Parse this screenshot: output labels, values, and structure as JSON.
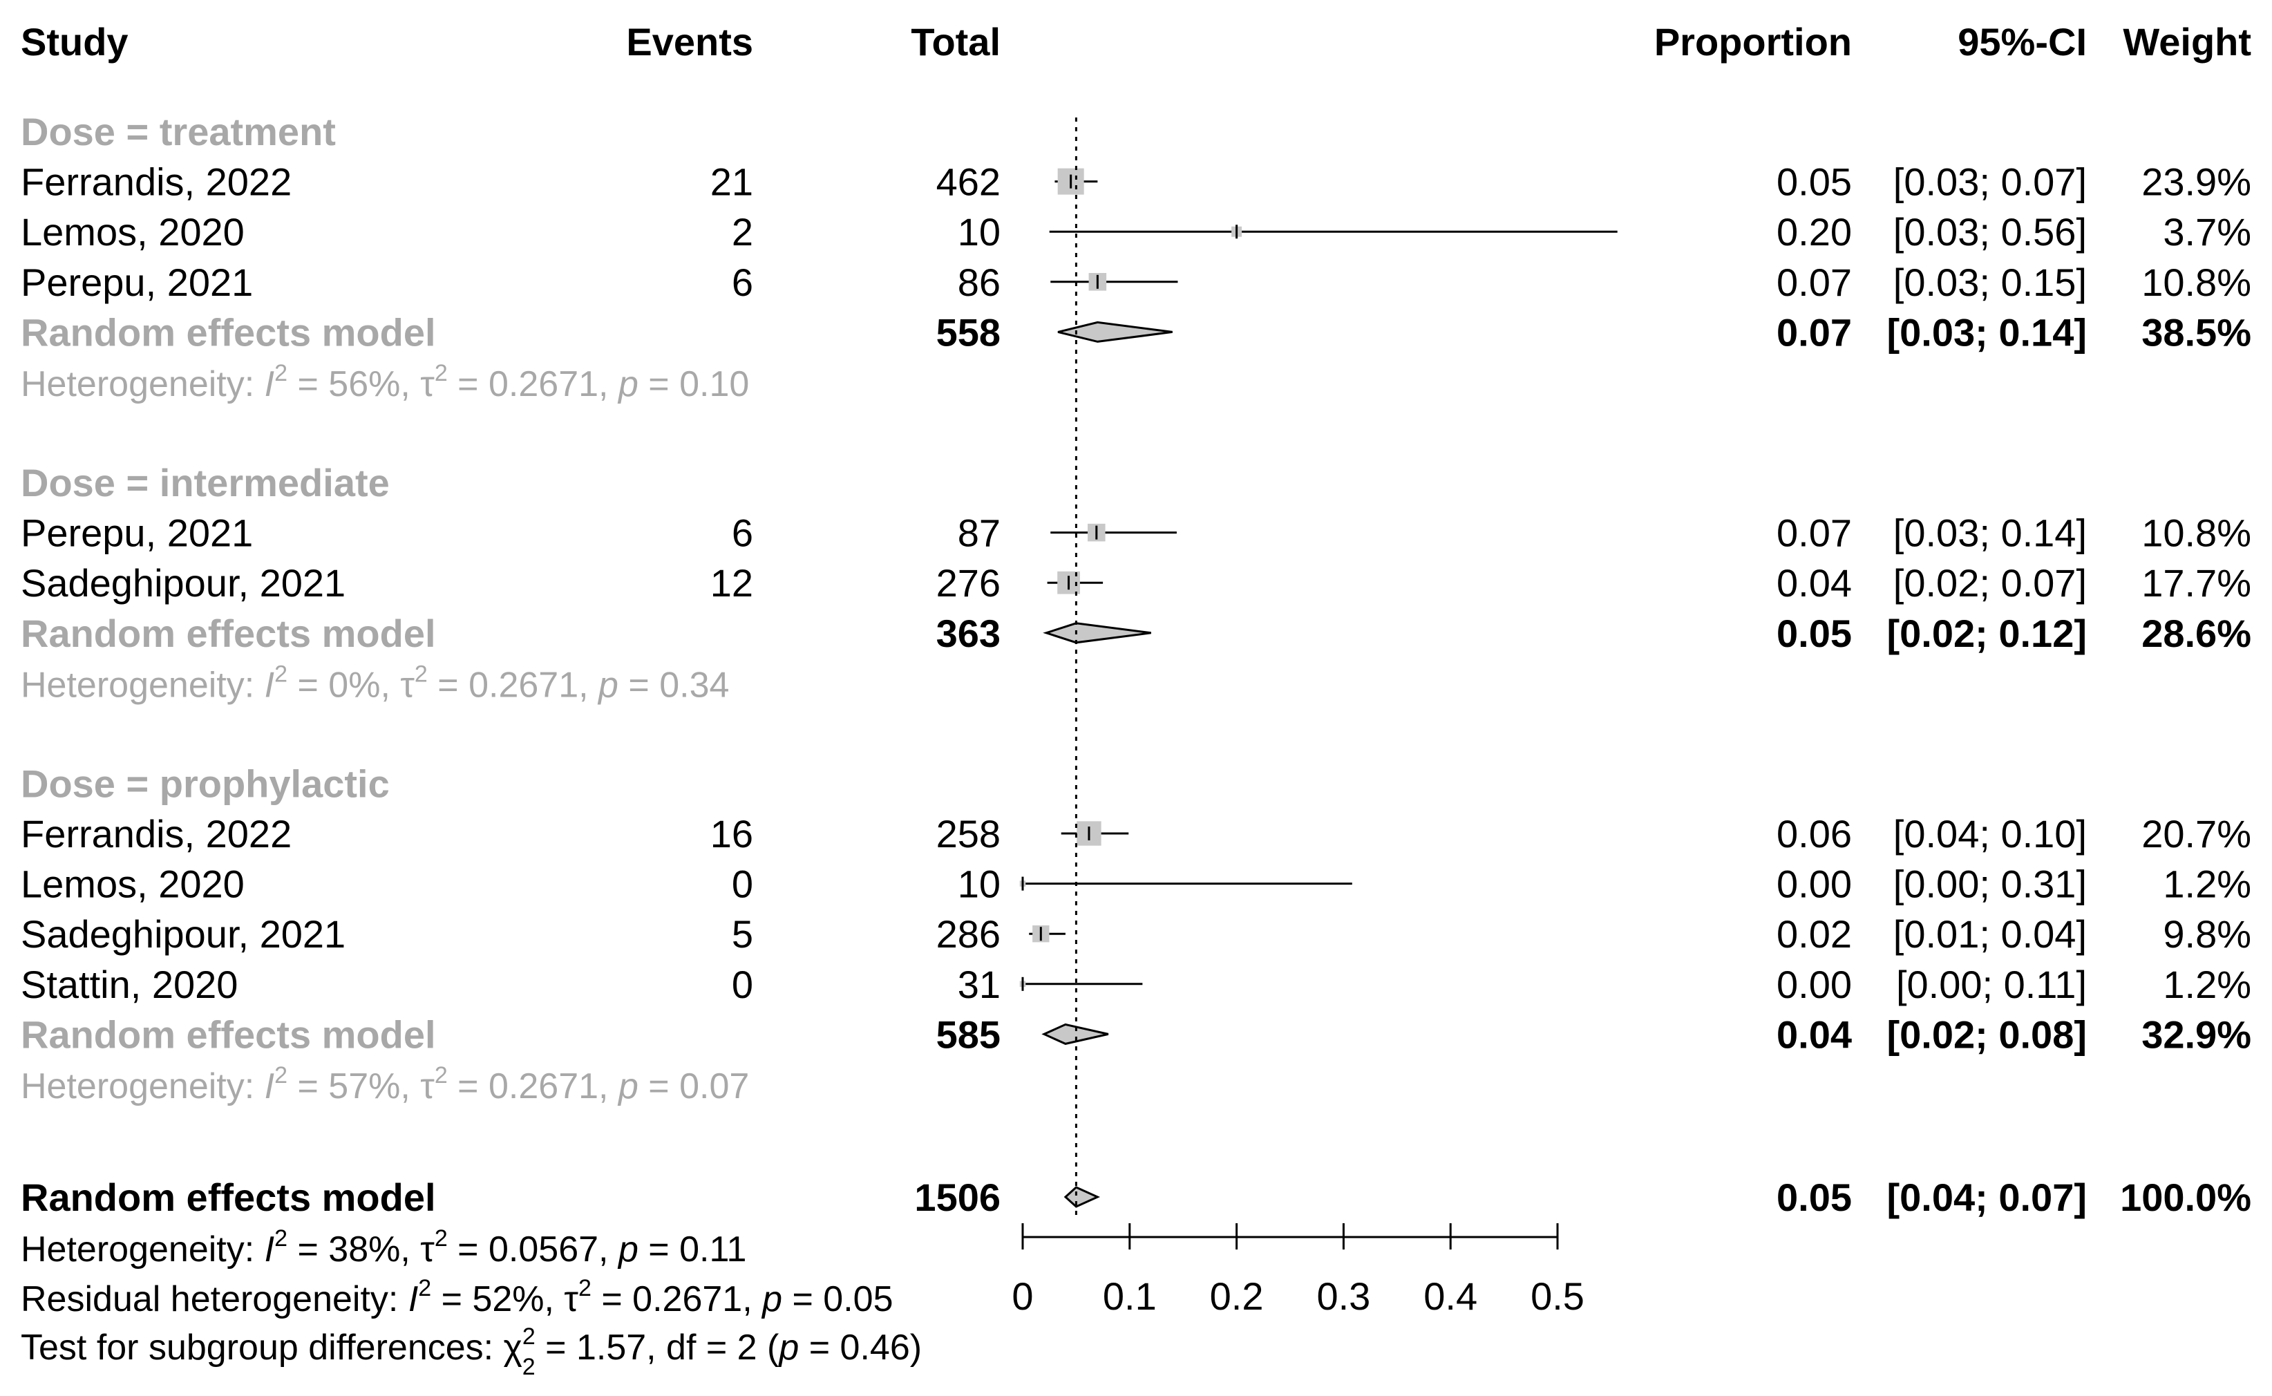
{
  "chart_data": {
    "type": "forest",
    "headers": {
      "study": "Study",
      "events": "Events",
      "total": "Total",
      "proportion": "Proportion",
      "ci": "95%-CI",
      "weight": "Weight"
    },
    "reference_line": 0.05,
    "xaxis": {
      "ticks": [
        0,
        0.1,
        0.2,
        0.3,
        0.4,
        0.5
      ],
      "tick_labels": [
        "0",
        "0.1",
        "0.2",
        "0.3",
        "0.4",
        "0.5"
      ],
      "range": [
        0,
        0.5
      ]
    },
    "subgroups": [
      {
        "label": "Dose = treatment",
        "studies": [
          {
            "study": "Ferrandis, 2022",
            "events": "21",
            "total": "462",
            "prop_text": "0.05",
            "ci_text": "[0.03; 0.07]",
            "weight_text": "23.9%",
            "estimate": 0.045,
            "lower": 0.03,
            "upper": 0.07,
            "weight": 23.9
          },
          {
            "study": "Lemos, 2020",
            "events": "2",
            "total": "10",
            "prop_text": "0.20",
            "ci_text": "[0.03; 0.56]",
            "weight_text": "3.7%",
            "estimate": 0.2,
            "lower": 0.025,
            "upper": 0.556,
            "weight": 3.7
          },
          {
            "study": "Perepu, 2021",
            "events": "6",
            "total": "86",
            "prop_text": "0.07",
            "ci_text": "[0.03; 0.15]",
            "weight_text": "10.8%",
            "estimate": 0.07,
            "lower": 0.026,
            "upper": 0.145,
            "weight": 10.8
          }
        ],
        "pooled": {
          "label": "Random effects model",
          "total": "558",
          "prop_text": "0.07",
          "ci_text": "[0.03; 0.14]",
          "weight_text": "38.5%",
          "estimate": 0.07,
          "lower": 0.033,
          "upper": 0.14
        },
        "heterogeneity": {
          "prefix": "Heterogeneity: ",
          "i2_symbol": "I",
          "i2_rest": " = 56%, τ",
          "tau_rest": " = 0.2671, ",
          "p_symbol": "p",
          "p_rest": " = 0.10"
        }
      },
      {
        "label": "Dose = intermediate",
        "studies": [
          {
            "study": "Perepu, 2021",
            "events": "6",
            "total": "87",
            "prop_text": "0.07",
            "ci_text": "[0.03; 0.14]",
            "weight_text": "10.8%",
            "estimate": 0.069,
            "lower": 0.026,
            "upper": 0.144,
            "weight": 10.8
          },
          {
            "study": "Sadeghipour, 2021",
            "events": "12",
            "total": "276",
            "prop_text": "0.04",
            "ci_text": "[0.02; 0.07]",
            "weight_text": "17.7%",
            "estimate": 0.043,
            "lower": 0.023,
            "upper": 0.075,
            "weight": 17.7
          }
        ],
        "pooled": {
          "label": "Random effects model",
          "total": "363",
          "prop_text": "0.05",
          "ci_text": "[0.02; 0.12]",
          "weight_text": "28.6%",
          "estimate": 0.05,
          "lower": 0.022,
          "upper": 0.12
        },
        "heterogeneity": {
          "prefix": "Heterogeneity: ",
          "i2_symbol": "I",
          "i2_rest": " = 0%, τ",
          "tau_rest": " = 0.2671, ",
          "p_symbol": "p",
          "p_rest": " = 0.34"
        }
      },
      {
        "label": "Dose = prophylactic",
        "studies": [
          {
            "study": "Ferrandis, 2022",
            "events": "16",
            "total": "258",
            "prop_text": "0.06",
            "ci_text": "[0.04; 0.10]",
            "weight_text": "20.7%",
            "estimate": 0.062,
            "lower": 0.036,
            "upper": 0.099,
            "weight": 20.7
          },
          {
            "study": "Lemos, 2020",
            "events": "0",
            "total": "10",
            "prop_text": "0.00",
            "ci_text": "[0.00; 0.31]",
            "weight_text": "1.2%",
            "estimate": 0.0,
            "lower": 0.0,
            "upper": 0.308,
            "weight": 1.2
          },
          {
            "study": "Sadeghipour, 2021",
            "events": "5",
            "total": "286",
            "prop_text": "0.02",
            "ci_text": "[0.01; 0.04]",
            "weight_text": "9.8%",
            "estimate": 0.017,
            "lower": 0.006,
            "upper": 0.04,
            "weight": 9.8
          },
          {
            "study": "Stattin, 2020",
            "events": "0",
            "total": "31",
            "prop_text": "0.00",
            "ci_text": "[0.00; 0.11]",
            "weight_text": "1.2%",
            "estimate": 0.0,
            "lower": 0.0,
            "upper": 0.112,
            "weight": 1.2
          }
        ],
        "pooled": {
          "label": "Random effects model",
          "total": "585",
          "prop_text": "0.04",
          "ci_text": "[0.02; 0.08]",
          "weight_text": "32.9%",
          "estimate": 0.04,
          "lower": 0.02,
          "upper": 0.08
        },
        "heterogeneity": {
          "prefix": "Heterogeneity: ",
          "i2_symbol": "I",
          "i2_rest": " = 57%, τ",
          "tau_rest": " = 0.2671, ",
          "p_symbol": "p",
          "p_rest": " = 0.07"
        }
      }
    ],
    "overall": {
      "label": "Random effects model",
      "total": "1506",
      "prop_text": "0.05",
      "ci_text": "[0.04; 0.07]",
      "weight_text": "100.0%",
      "estimate": 0.05,
      "lower": 0.04,
      "upper": 0.07
    },
    "footer": {
      "heterogeneity": {
        "prefix": "Heterogeneity: ",
        "i2_symbol": "I",
        "i2_rest": " = 38%, τ",
        "tau_rest": " = 0.0567, ",
        "p_symbol": "p",
        "p_rest": " = 0.11"
      },
      "residual": {
        "prefix": "Residual heterogeneity: ",
        "i2_symbol": "I",
        "i2_rest": " = 52%, τ",
        "tau_rest": " = 0.2671, ",
        "p_symbol": "p",
        "p_rest": " = 0.05"
      },
      "subgroup_test": {
        "prefix": "Test for subgroup differences: χ",
        "chi_sub": "2",
        "chi_rest": " = 1.57, df = 2 (",
        "p_symbol": "p",
        "p_rest": " = 0.46)"
      },
      "sup2": "2"
    }
  }
}
